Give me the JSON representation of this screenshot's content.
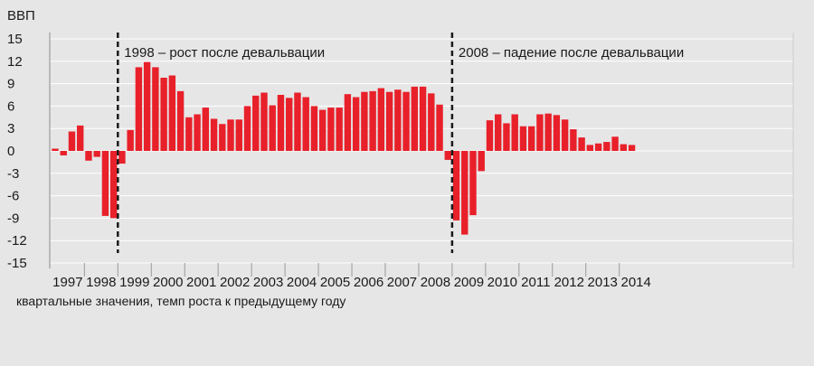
{
  "chart_data": {
    "type": "bar",
    "ylabel": "ВВП",
    "caption": "квартальные значения, темп роста к предыдущему году",
    "ylim": [
      -15,
      15
    ],
    "yticks": [
      15,
      12,
      9,
      6,
      3,
      0,
      -3,
      -6,
      -9,
      -12,
      -15
    ],
    "grid": "horizontal",
    "bar_color": "#e8202a",
    "years": [
      "1997",
      "1998",
      "1999",
      "2000",
      "2001",
      "2002",
      "2003",
      "2004",
      "2005",
      "2006",
      "2007",
      "2008",
      "2009",
      "2010",
      "2011",
      "2012",
      "2013",
      "2014"
    ],
    "quarters": [
      "1997 Q1",
      "1997 Q2",
      "1997 Q3",
      "1997 Q4",
      "1998 Q1",
      "1998 Q2",
      "1998 Q3",
      "1998 Q4",
      "1999 Q1",
      "1999 Q2",
      "1999 Q3",
      "1999 Q4",
      "2000 Q1",
      "2000 Q2",
      "2000 Q3",
      "2000 Q4",
      "2001 Q1",
      "2001 Q2",
      "2001 Q3",
      "2001 Q4",
      "2002 Q1",
      "2002 Q2",
      "2002 Q3",
      "2002 Q4",
      "2003 Q1",
      "2003 Q2",
      "2003 Q3",
      "2003 Q4",
      "2004 Q1",
      "2004 Q2",
      "2004 Q3",
      "2004 Q4",
      "2005 Q1",
      "2005 Q2",
      "2005 Q3",
      "2005 Q4",
      "2006 Q1",
      "2006 Q2",
      "2006 Q3",
      "2006 Q4",
      "2007 Q1",
      "2007 Q2",
      "2007 Q3",
      "2007 Q4",
      "2008 Q1",
      "2008 Q2",
      "2008 Q3",
      "2008 Q4",
      "2009 Q1",
      "2009 Q2",
      "2009 Q3",
      "2009 Q4",
      "2010 Q1",
      "2010 Q2",
      "2010 Q3",
      "2010 Q4",
      "2011 Q1",
      "2011 Q2",
      "2011 Q3",
      "2011 Q4",
      "2012 Q1",
      "2012 Q2",
      "2012 Q3",
      "2012 Q4",
      "2013 Q1",
      "2013 Q2",
      "2013 Q3",
      "2013 Q4",
      "2014 Q1",
      "2014 Q2"
    ],
    "values": [
      0.3,
      -0.6,
      2.6,
      3.4,
      -1.3,
      -0.8,
      -8.7,
      -9.0,
      -1.7,
      2.8,
      11.2,
      11.9,
      11.2,
      9.8,
      10.1,
      8.0,
      4.5,
      4.9,
      5.8,
      4.3,
      3.6,
      4.2,
      4.2,
      6.0,
      7.4,
      7.8,
      6.1,
      7.5,
      7.1,
      7.8,
      7.2,
      6.0,
      5.5,
      5.8,
      5.8,
      7.6,
      7.2,
      7.9,
      8.0,
      8.4,
      7.9,
      8.2,
      7.9,
      8.6,
      8.6,
      7.7,
      6.2,
      -1.2,
      -9.3,
      -11.2,
      -8.6,
      -2.7,
      4.1,
      4.9,
      3.7,
      4.9,
      3.3,
      3.3,
      4.9,
      5.0,
      4.8,
      4.2,
      2.9,
      1.8,
      0.8,
      1.0,
      1.2,
      1.9,
      0.9,
      0.8
    ],
    "annotations": [
      {
        "label": "1998 – рост после девальвации",
        "after_index": 7
      },
      {
        "label": "2008 – падение после девальвации",
        "after_index": 47
      }
    ]
  }
}
